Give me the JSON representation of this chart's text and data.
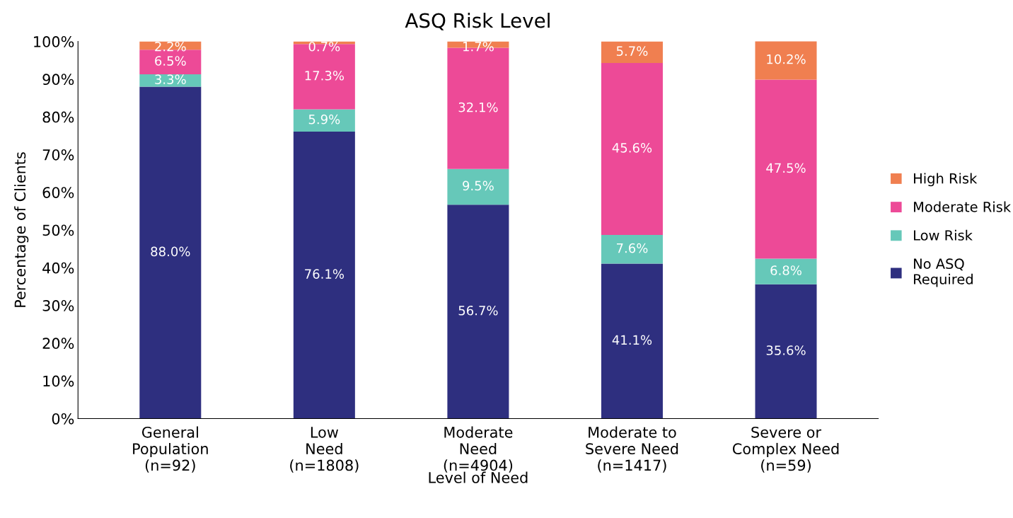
{
  "chart_data": {
    "type": "bar",
    "stacked": true,
    "title": "ASQ Risk Level",
    "xlabel": "Level of Need",
    "ylabel": "Percentage of Clients",
    "categories": [
      "General\nPopulation\n(n=92)",
      "Low\nNeed\n(n=1808)",
      "Moderate\nNeed\n(n=4904)",
      "Moderate to\nSevere Need\n(n=1417)",
      "Severe or\nComplex Need\n(n=59)"
    ],
    "series": [
      {
        "name": "No ASQ\nRequired",
        "color": "#2e2f7f",
        "values": [
          88.0,
          76.1,
          56.7,
          41.1,
          35.6
        ],
        "value_labels": [
          "88.0%",
          "76.1%",
          "56.7%",
          "41.1%",
          "35.6%"
        ]
      },
      {
        "name": "Low Risk",
        "color": "#66c8b9",
        "values": [
          3.3,
          5.9,
          9.5,
          7.6,
          6.8
        ],
        "value_labels": [
          "3.3%",
          "5.9%",
          "9.5%",
          "7.6%",
          "6.8%"
        ]
      },
      {
        "name": "Moderate Risk",
        "color": "#ed4a97",
        "values": [
          6.5,
          17.3,
          32.1,
          45.6,
          47.5
        ],
        "value_labels": [
          "6.5%",
          "17.3%",
          "32.1%",
          "45.6%",
          "47.5%"
        ]
      },
      {
        "name": "High Risk",
        "color": "#f07f50",
        "values": [
          2.2,
          0.7,
          1.7,
          5.7,
          10.2
        ],
        "value_labels": [
          "2.2%",
          "0.7%",
          "1.7%",
          "5.7%",
          "10.2%"
        ]
      }
    ],
    "ylim": [
      0,
      100
    ],
    "yticks": [
      {
        "value": 0,
        "label": "0%"
      },
      {
        "value": 10,
        "label": "10%"
      },
      {
        "value": 20,
        "label": "20%"
      },
      {
        "value": 30,
        "label": "30%"
      },
      {
        "value": 40,
        "label": "40%"
      },
      {
        "value": 50,
        "label": "50%"
      },
      {
        "value": 60,
        "label": "60%"
      },
      {
        "value": 70,
        "label": "70%"
      },
      {
        "value": 80,
        "label": "80%"
      },
      {
        "value": 90,
        "label": "90%"
      },
      {
        "value": 100,
        "label": "100%"
      }
    ],
    "grid": false,
    "legend": "right"
  }
}
